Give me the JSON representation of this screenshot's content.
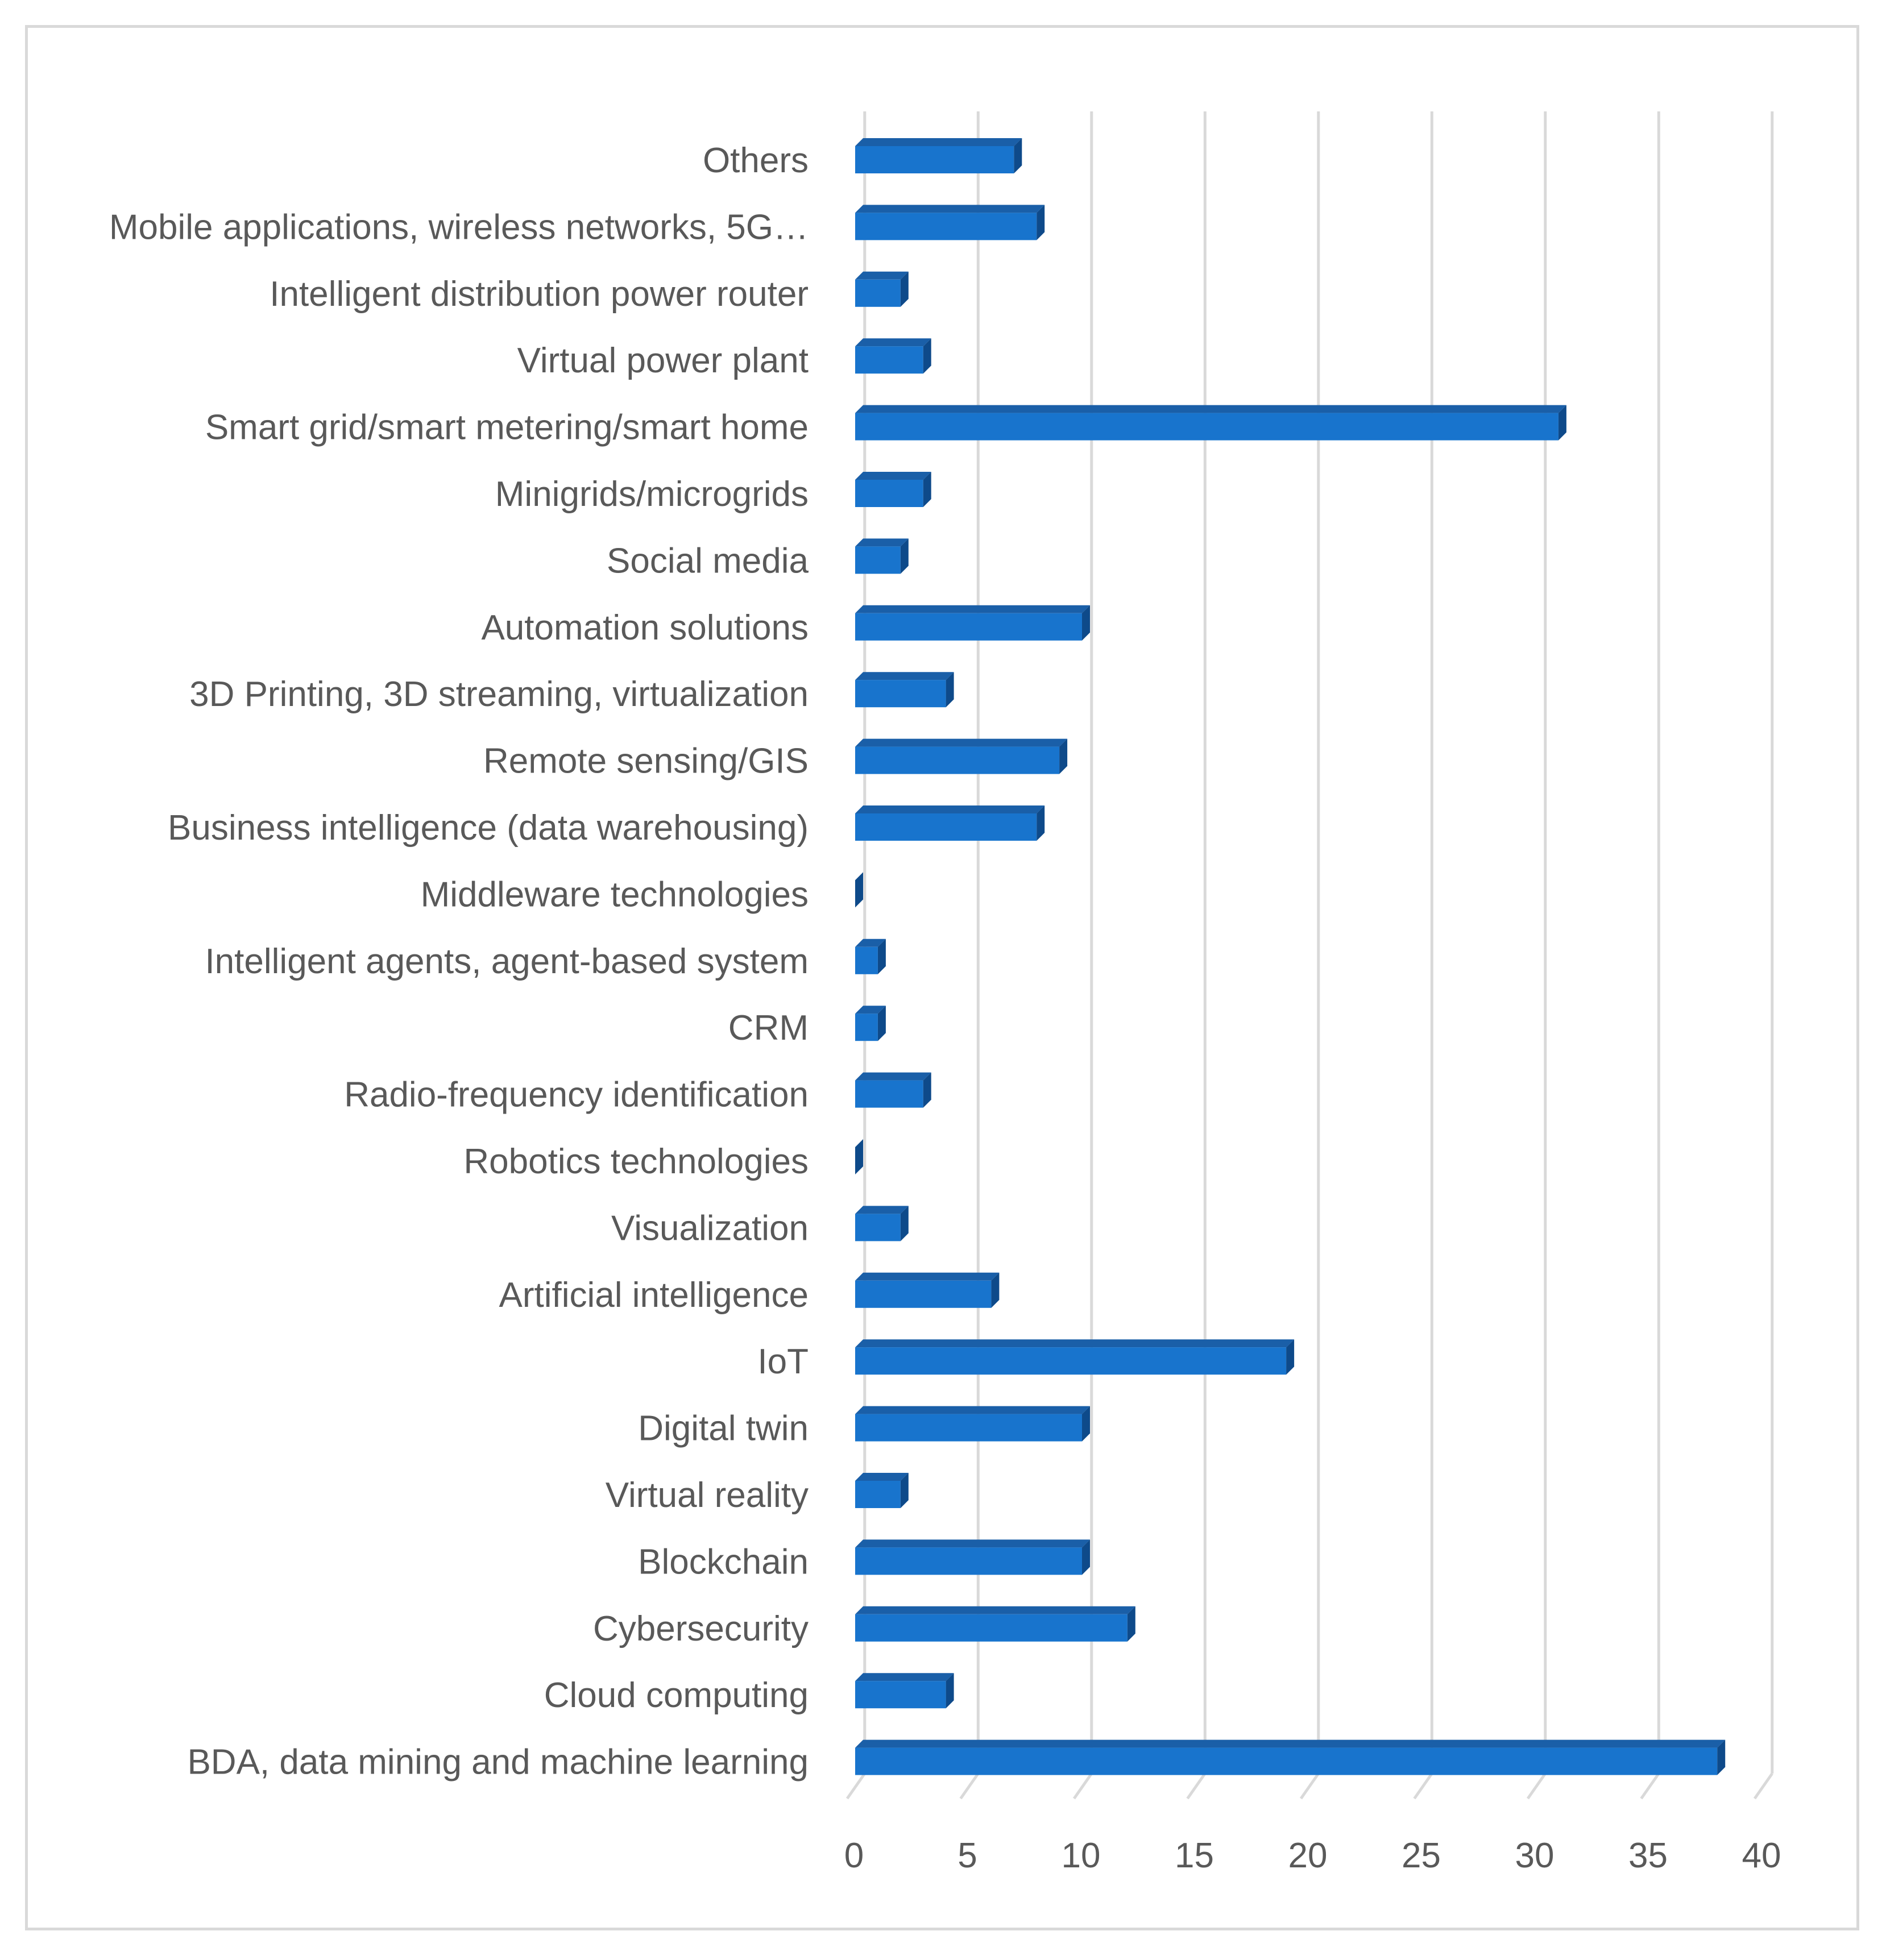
{
  "chart_data": {
    "type": "bar",
    "orientation": "horizontal",
    "title": "",
    "xlabel": "",
    "ylabel": "",
    "xlim": [
      0,
      40
    ],
    "x_ticks": [
      "0",
      "5",
      "10",
      "15",
      "20",
      "25",
      "30",
      "35",
      "40"
    ],
    "grid": true,
    "legend": "none",
    "bar_color": "#1874cd",
    "bar_side_color": "#0e4a8a",
    "bar_top_color": "#1a5fa8",
    "grid_color": "#d9d9d9",
    "label_color": "#595959",
    "categories": [
      "Others",
      "Mobile applications, wireless networks, 5G…",
      "Intelligent distribution power router",
      "Virtual power plant",
      "Smart grid/smart metering/smart home",
      "Minigrids/microgrids",
      "Social media",
      "Automation solutions",
      "3D Printing, 3D streaming, virtualization",
      "Remote sensing/GIS",
      "Business intelligence (data warehousing)",
      "Middleware technologies",
      "Intelligent agents, agent-based system",
      "CRM",
      "Radio-frequency identification",
      "Robotics technologies",
      "Visualization",
      "Artificial intelligence",
      "IoT",
      "Digital twin",
      "Virtual reality",
      "Blockchain",
      "Cybersecurity",
      "Cloud computing",
      "BDA, data mining and machine learning"
    ],
    "values": [
      7,
      8,
      2,
      3,
      31,
      3,
      2,
      10,
      4,
      9,
      8,
      0,
      1,
      1,
      3,
      0,
      2,
      6,
      19,
      10,
      2,
      10,
      12,
      4,
      38
    ]
  }
}
